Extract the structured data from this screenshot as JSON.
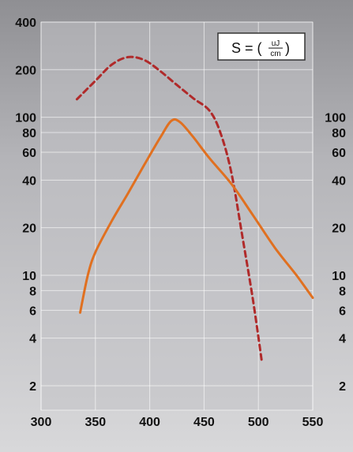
{
  "chart_data": {
    "type": "line",
    "y_scale": "log",
    "xlim": [
      300,
      550
    ],
    "ylim": [
      1.4,
      400
    ],
    "x_ticks": [
      "300",
      "350",
      "400",
      "450",
      "500",
      "550"
    ],
    "y_ticks_left": [
      "2",
      "4",
      "6",
      "8",
      "10",
      "20",
      "40",
      "60",
      "80",
      "100",
      "200",
      "400"
    ],
    "y_ticks_right": [
      "2",
      "4",
      "6",
      "8",
      "10",
      "20",
      "40",
      "60",
      "80",
      "100"
    ],
    "grid": true,
    "annotation": {
      "lhs": "S = (",
      "numerator": "uJ",
      "denominator": "cm",
      "rhs": ")"
    },
    "series": [
      {
        "style": "dashed",
        "color": "#b02a2a",
        "points": [
          [
            333,
            130
          ],
          [
            350,
            170
          ],
          [
            365,
            215
          ],
          [
            380,
            240
          ],
          [
            395,
            230
          ],
          [
            410,
            195
          ],
          [
            425,
            160
          ],
          [
            440,
            132
          ],
          [
            455,
            110
          ],
          [
            465,
            80
          ],
          [
            475,
            45
          ],
          [
            485,
            18
          ],
          [
            495,
            7
          ],
          [
            503,
            2.9
          ]
        ]
      },
      {
        "style": "solid",
        "color": "#e07020",
        "points": [
          [
            336,
            5.8
          ],
          [
            343,
            10
          ],
          [
            350,
            14
          ],
          [
            365,
            22
          ],
          [
            380,
            33
          ],
          [
            395,
            50
          ],
          [
            410,
            75
          ],
          [
            420,
            95
          ],
          [
            428,
            93
          ],
          [
            440,
            75
          ],
          [
            455,
            55
          ],
          [
            475,
            38
          ],
          [
            495,
            24
          ],
          [
            515,
            15
          ],
          [
            535,
            10
          ],
          [
            550,
            7.2
          ]
        ]
      }
    ]
  }
}
